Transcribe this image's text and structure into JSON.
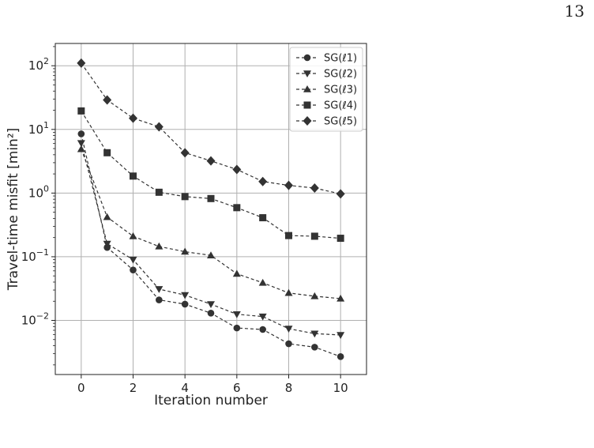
{
  "page": {
    "number": "13"
  },
  "chart_data": {
    "type": "line",
    "title": "",
    "xlabel": "Iteration number",
    "ylabel": "Travel-time misfit [min²]",
    "yscale": "log",
    "xlim": [
      -1,
      11
    ],
    "ylim_log10": [
      -2.85,
      2.35
    ],
    "grid": true,
    "legend_position": "top-right",
    "x": [
      0,
      1,
      2,
      3,
      4,
      5,
      6,
      7,
      8,
      9,
      10
    ],
    "x_ticks": [
      0,
      2,
      4,
      6,
      8,
      10
    ],
    "x_tick_labels": [
      "0",
      "2",
      "4",
      "6",
      "8",
      "10"
    ],
    "y_ticks_log10": [
      -2,
      -1,
      0,
      1,
      2
    ],
    "y_tick_labels": [
      "10",
      "10",
      "10",
      "10",
      "10"
    ],
    "y_tick_exponents": [
      "−2",
      "−1",
      "0",
      "1",
      "2"
    ],
    "line_color": "#333333",
    "series": [
      {
        "name": "SG(ℓ1)",
        "marker": "circle",
        "values": [
          8.5,
          0.14,
          0.062,
          0.021,
          0.018,
          0.013,
          0.0076,
          0.0072,
          0.0043,
          0.0038,
          0.0027
        ]
      },
      {
        "name": "SG(ℓ2)",
        "marker": "triangle-down",
        "values": [
          6.1,
          0.16,
          0.09,
          0.031,
          0.025,
          0.018,
          0.0125,
          0.0115,
          0.0074,
          0.0062,
          0.0059
        ]
      },
      {
        "name": "SG(ℓ3)",
        "marker": "triangle-up",
        "values": [
          4.9,
          0.42,
          0.21,
          0.145,
          0.12,
          0.105,
          0.054,
          0.039,
          0.027,
          0.024,
          0.022
        ]
      },
      {
        "name": "SG(ℓ4)",
        "marker": "square",
        "values": [
          19.5,
          4.3,
          1.85,
          1.03,
          0.88,
          0.82,
          0.59,
          0.41,
          0.215,
          0.21,
          0.195
        ]
      },
      {
        "name": "SG(ℓ5)",
        "marker": "diamond",
        "values": [
          110,
          29,
          15,
          11,
          4.3,
          3.2,
          2.35,
          1.52,
          1.32,
          1.2,
          0.97
        ]
      }
    ]
  }
}
